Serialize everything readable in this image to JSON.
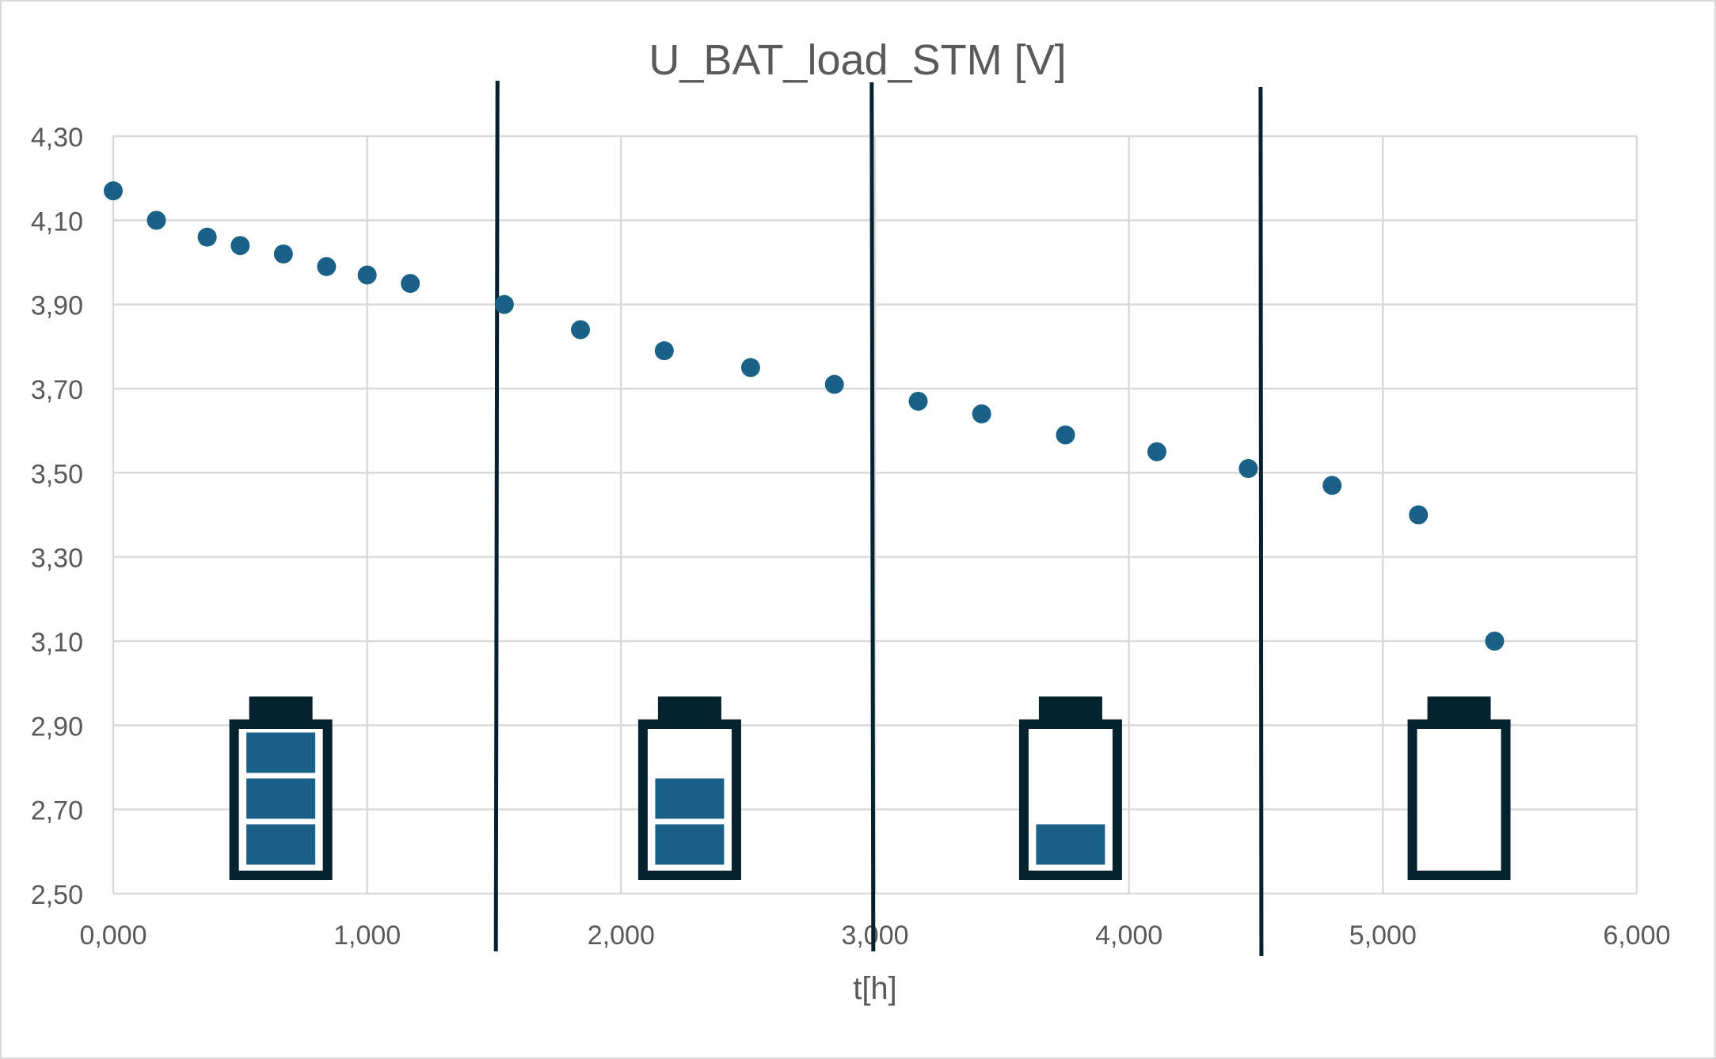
{
  "colors": {
    "marker": "#1a6187",
    "battery_outline": "#06222f",
    "battery_fill": "#1a6187",
    "divider": "#06222f",
    "grid": "#d9d9d9",
    "text": "#595959",
    "background": "#ffffff"
  },
  "chart_data": {
    "type": "scatter",
    "title": "U_BAT_load_STM [V]",
    "xlabel": "t[h]",
    "ylabel": "",
    "xlim": [
      0,
      6000
    ],
    "ylim": [
      2.5,
      4.3
    ],
    "x_ticks": [
      0,
      1000,
      2000,
      3000,
      4000,
      5000,
      6000
    ],
    "x_tick_labels": [
      "0,000",
      "1,000",
      "2,000",
      "3,000",
      "4,000",
      "5,000",
      "6,000"
    ],
    "y_ticks": [
      2.5,
      2.7,
      2.9,
      3.1,
      3.3,
      3.5,
      3.7,
      3.9,
      4.1,
      4.3
    ],
    "y_tick_labels": [
      "2,50",
      "2,70",
      "2,90",
      "3,10",
      "3,30",
      "3,50",
      "3,70",
      "3,90",
      "4,10",
      "4,30"
    ],
    "grid": true,
    "legend": "none",
    "series": [
      {
        "points": [
          [
            0,
            4.17
          ],
          [
            170,
            4.1
          ],
          [
            370,
            4.06
          ],
          [
            500,
            4.04
          ],
          [
            670,
            4.02
          ],
          [
            840,
            3.99
          ],
          [
            1000,
            3.97
          ],
          [
            1170,
            3.95
          ],
          [
            1540,
            3.9
          ],
          [
            1840,
            3.84
          ],
          [
            2170,
            3.79
          ],
          [
            2510,
            3.75
          ],
          [
            2840,
            3.71
          ],
          [
            3170,
            3.67
          ],
          [
            3420,
            3.64
          ],
          [
            3750,
            3.59
          ],
          [
            4110,
            3.55
          ],
          [
            4470,
            3.51
          ],
          [
            4800,
            3.47
          ],
          [
            5140,
            3.4
          ],
          [
            5440,
            3.1
          ]
        ]
      }
    ],
    "annotations": {
      "dividers_x": [
        1510,
        2990,
        4520
      ],
      "battery_levels": [
        {
          "center_x": 660,
          "bars": 3
        },
        {
          "center_x": 2270,
          "bars": 2
        },
        {
          "center_x": 3770,
          "bars": 1
        },
        {
          "center_x": 5300,
          "bars": 0
        }
      ]
    }
  }
}
